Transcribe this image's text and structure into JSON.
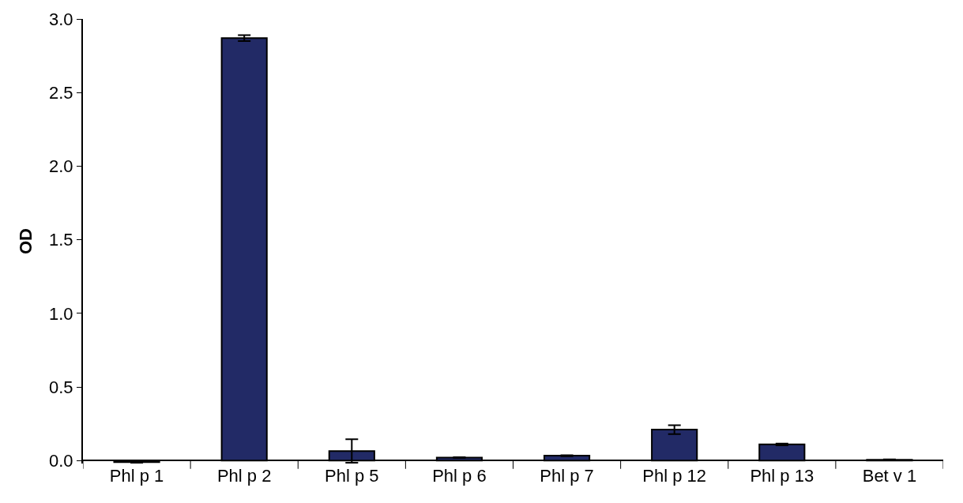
{
  "chart_data": {
    "type": "bar",
    "ylabel": "OD",
    "categories": [
      "Phl p 1",
      "Phl p 2",
      "Phl p 5",
      "Phl p 6",
      "Phl p 7",
      "Phl p 12",
      "Phl p 13",
      "Bet v 1"
    ],
    "values": [
      -0.01,
      2.87,
      0.065,
      0.02,
      0.033,
      0.21,
      0.11,
      0.005
    ],
    "errors": [
      0.005,
      0.02,
      0.08,
      0.003,
      0.003,
      0.03,
      0.006,
      0.003
    ],
    "color": "#222a66",
    "ylim": [
      -0.02,
      3.0
    ],
    "yticks": [
      {
        "value": 0,
        "label": "0.0"
      },
      {
        "value": 0.5,
        "label": "0.5"
      },
      {
        "value": 1,
        "label": "1.0"
      },
      {
        "value": 1.5,
        "label": "1.5"
      },
      {
        "value": 2,
        "label": "2.0"
      },
      {
        "value": 2.5,
        "label": "2.5"
      },
      {
        "value": 3,
        "label": "3.0"
      }
    ]
  }
}
